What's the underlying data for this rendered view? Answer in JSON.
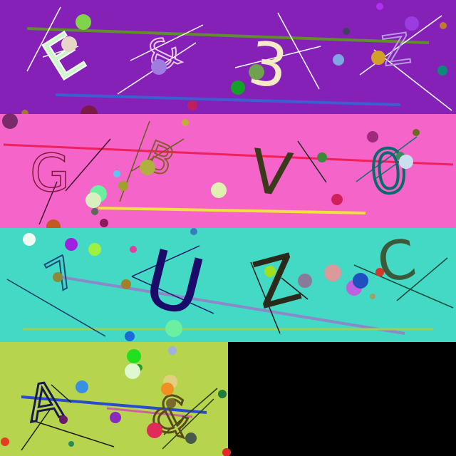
{
  "panels": [
    {
      "id": "panel-1",
      "background": "#8621B8",
      "characters": [
        "E",
        "&",
        "3",
        "Z"
      ]
    },
    {
      "id": "panel-2",
      "background": "#F565C9",
      "characters": [
        "G",
        "B",
        "V",
        "0"
      ]
    },
    {
      "id": "panel-3",
      "background": "#44D9C4",
      "characters": [
        "7",
        "U",
        "Z",
        "C"
      ]
    },
    {
      "id": "panel-4",
      "background": "#B7D44E",
      "characters": [
        "A",
        "&"
      ]
    }
  ],
  "empty_area_color": "#000000"
}
